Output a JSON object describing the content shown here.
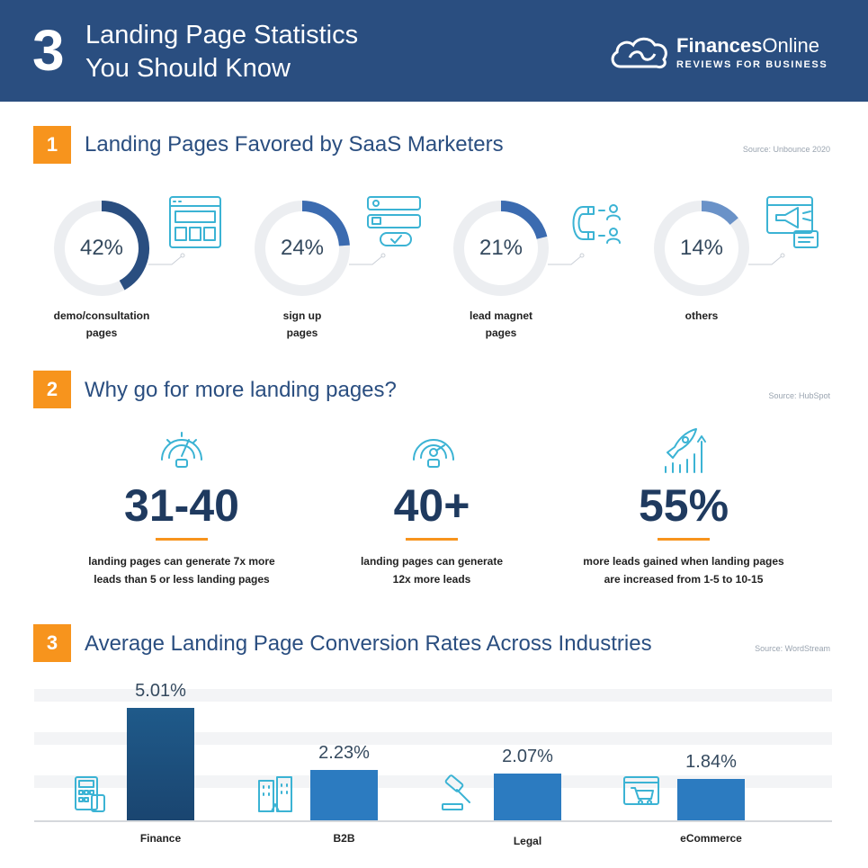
{
  "header": {
    "number": "3",
    "title_line1": "Landing Page Statistics",
    "title_line2": "You Should Know",
    "brand_bold": "Finances",
    "brand_regular": "Online",
    "brand_tagline": "REVIEWS FOR BUSINESS"
  },
  "sections": [
    {
      "number": "1",
      "title": "Landing Pages Favored by SaaS Marketers",
      "source": "Source: Unbounce 2020"
    },
    {
      "number": "2",
      "title": "Why go for more landing pages?",
      "source": "Source: HubSpot"
    },
    {
      "number": "3",
      "title": "Average Landing Page Conversion Rates Across Industries",
      "source": "Source: WordStream"
    }
  ],
  "donuts": [
    {
      "label_line1": "demo/consultation",
      "label_line2": "pages",
      "icon": "browser-layout-icon"
    },
    {
      "label_line1": "sign up",
      "label_line2": "pages",
      "icon": "signup-form-icon"
    },
    {
      "label_line1": "lead magnet",
      "label_line2": "pages",
      "icon": "magnet-icon"
    },
    {
      "label_line1": "others",
      "label_line2": "",
      "icon": "megaphone-icon"
    }
  ],
  "stats": [
    {
      "value": "31-40",
      "line1": "landing pages can generate 7x more",
      "line2": "leads than 5 or less landing pages",
      "icon": "speedometer-icon"
    },
    {
      "value": "40+",
      "line1": "landing pages can generate",
      "line2": "12x more leads",
      "icon": "gauge-icon"
    },
    {
      "value": "55%",
      "line1": "more leads gained when landing pages",
      "line2": "are increased from 1-5 to 10-15",
      "icon": "rocket-growth-icon"
    }
  ],
  "colors": {
    "header_bg": "#2a4e80",
    "accent": "#f7941d",
    "donut_dark": "#2a4e80",
    "donut_mid": "#3b6bb0",
    "donut_light": "#6a92c8",
    "bar_dark": "#1f4e79",
    "bar_mid": "#2c7bc0",
    "icon": "#3bb3d4"
  },
  "chart_data": [
    {
      "type": "pie",
      "categories": [
        "demo/consultation pages",
        "sign up pages",
        "lead magnet pages",
        "others"
      ],
      "values": [
        42,
        24,
        21,
        14
      ],
      "labels": [
        "42%",
        "24%",
        "21%",
        "14%"
      ],
      "title": "Landing Pages Favored by SaaS Marketers"
    },
    {
      "type": "bar",
      "categories": [
        "Finance",
        "B2B",
        "Legal",
        "eCommerce"
      ],
      "values": [
        5.01,
        2.23,
        2.07,
        1.84
      ],
      "labels": [
        "5.01%",
        "2.23%",
        "2.07%",
        "1.84%"
      ],
      "title": "Average Landing Page Conversion Rates Across Industries",
      "icons": [
        "calculator-icon",
        "buildings-icon",
        "gavel-icon",
        "shopping-cart-icon"
      ],
      "ylim": [
        0,
        5.5
      ]
    }
  ]
}
